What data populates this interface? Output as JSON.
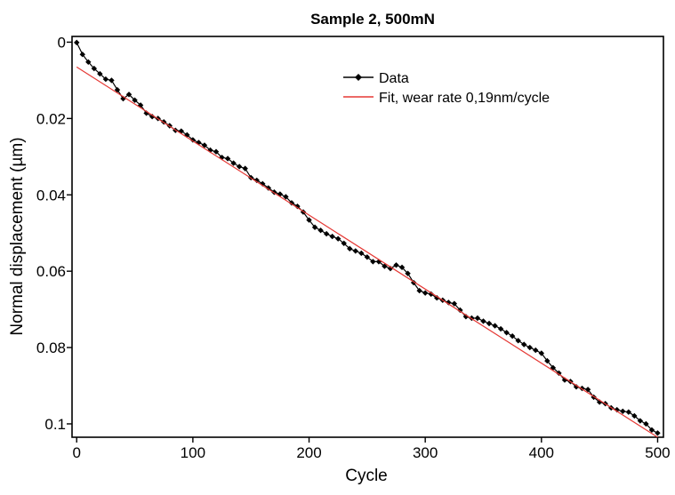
{
  "chart_data": {
    "type": "line",
    "title": "Sample 2, 500mN",
    "xlabel": "Cycle",
    "ylabel": "Normal displacement (µm)",
    "xlim": [
      -4,
      505
    ],
    "ylim": [
      -0.0015,
      0.1035
    ],
    "y_inverted": true,
    "grid": false,
    "legend_position": "top-right",
    "x_ticks": [
      0,
      100,
      200,
      300,
      400,
      500
    ],
    "x_tick_labels": [
      "0",
      "100",
      "200",
      "300",
      "400",
      "500"
    ],
    "y_ticks": [
      0,
      0.02,
      0.04,
      0.06,
      0.08,
      0.1
    ],
    "y_tick_labels": [
      "0",
      "0.02",
      "0.04",
      "0.06",
      "0.08",
      "0.1"
    ],
    "series": [
      {
        "name": "Data",
        "style": "line-with-diamond-markers",
        "color": "#000000",
        "x": [
          0,
          5,
          10,
          15,
          20,
          25,
          30,
          35,
          40,
          45,
          50,
          55,
          60,
          65,
          70,
          75,
          80,
          85,
          90,
          95,
          100,
          105,
          110,
          115,
          120,
          125,
          130,
          135,
          140,
          145,
          150,
          155,
          160,
          165,
          170,
          175,
          180,
          185,
          190,
          195,
          200,
          205,
          210,
          215,
          220,
          225,
          230,
          235,
          240,
          245,
          250,
          255,
          260,
          265,
          270,
          275,
          280,
          285,
          290,
          295,
          300,
          305,
          310,
          315,
          320,
          325,
          330,
          335,
          340,
          345,
          350,
          355,
          360,
          365,
          370,
          375,
          380,
          385,
          390,
          395,
          400,
          405,
          410,
          415,
          420,
          425,
          430,
          435,
          440,
          445,
          450,
          455,
          460,
          465,
          470,
          475,
          480,
          485,
          490,
          495,
          500
        ],
        "y": [
          0.0001,
          0.0032,
          0.0052,
          0.0069,
          0.0083,
          0.0097,
          0.01,
          0.0125,
          0.0148,
          0.0137,
          0.0152,
          0.0165,
          0.0186,
          0.0195,
          0.02,
          0.0209,
          0.0219,
          0.0231,
          0.0233,
          0.0243,
          0.0256,
          0.0263,
          0.027,
          0.0283,
          0.0287,
          0.0302,
          0.0305,
          0.0317,
          0.0326,
          0.0331,
          0.0355,
          0.0362,
          0.0371,
          0.0382,
          0.0393,
          0.0398,
          0.0405,
          0.0421,
          0.043,
          0.0445,
          0.0466,
          0.0485,
          0.0493,
          0.0502,
          0.0509,
          0.0515,
          0.0527,
          0.0541,
          0.0547,
          0.0553,
          0.0563,
          0.0575,
          0.0575,
          0.0587,
          0.0593,
          0.0584,
          0.059,
          0.0606,
          0.063,
          0.0651,
          0.0657,
          0.066,
          0.067,
          0.0676,
          0.0682,
          0.0685,
          0.0702,
          0.0719,
          0.0723,
          0.0723,
          0.0731,
          0.0737,
          0.0743,
          0.0751,
          0.0761,
          0.077,
          0.0782,
          0.0792,
          0.08,
          0.0807,
          0.0815,
          0.0835,
          0.0853,
          0.0867,
          0.0885,
          0.0889,
          0.0903,
          0.0907,
          0.091,
          0.093,
          0.0943,
          0.0947,
          0.0958,
          0.0963,
          0.0967,
          0.0969,
          0.0979,
          0.0992,
          0.1,
          0.1016,
          0.1024
        ]
      },
      {
        "name": "Fit, wear rate 0,19nm/cycle",
        "style": "line",
        "color": "#e53935",
        "x": [
          0,
          500
        ],
        "y": [
          0.0065,
          0.1035
        ]
      }
    ]
  }
}
